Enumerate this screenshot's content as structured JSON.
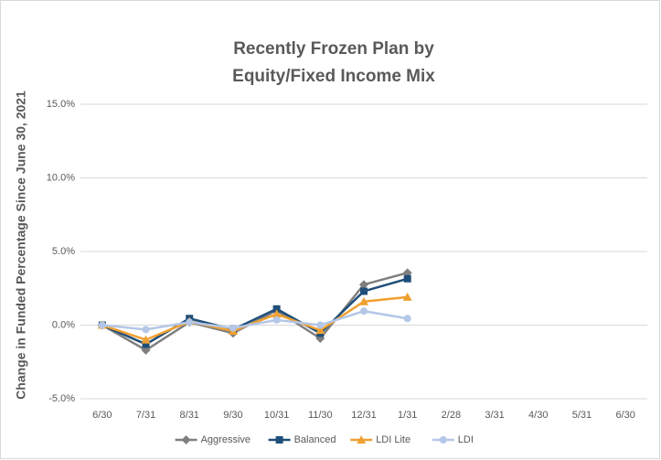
{
  "chart_data": {
    "type": "line",
    "title": [
      "Recently Frozen Plan by",
      "Equity/Fixed Income Mix"
    ],
    "y_label": "Change in Funded Percentage Since June 30, 2021",
    "categories": [
      "6/30",
      "7/31",
      "8/31",
      "9/30",
      "10/31",
      "11/30",
      "12/31",
      "1/31",
      "2/28",
      "3/31",
      "4/30",
      "5/31",
      "6/30"
    ],
    "series": [
      {
        "name": "Aggressive",
        "color": "#7f7f7f",
        "marker": "diamond",
        "values": [
          0,
          -1.7,
          0.2,
          -0.55,
          1.0,
          -0.9,
          2.75,
          3.55,
          null,
          null,
          null,
          null,
          null
        ]
      },
      {
        "name": "Balanced",
        "color": "#1f4e79",
        "marker": "square",
        "values": [
          0,
          -1.3,
          0.45,
          -0.3,
          1.1,
          -0.55,
          2.3,
          3.15,
          null,
          null,
          null,
          null,
          null
        ]
      },
      {
        "name": "LDI Lite",
        "color": "#f0a030",
        "marker": "triangle",
        "values": [
          0,
          -1.0,
          0.25,
          -0.4,
          0.75,
          -0.35,
          1.6,
          1.9,
          null,
          null,
          null,
          null,
          null
        ]
      },
      {
        "name": "LDI",
        "color": "#b4c7e7",
        "marker": "circle",
        "values": [
          0,
          -0.3,
          0.2,
          -0.2,
          0.35,
          0.0,
          0.95,
          0.45,
          null,
          null,
          null,
          null,
          null
        ]
      }
    ],
    "ylim": [
      -5,
      15
    ],
    "yticks": [
      {
        "value": -5,
        "label": "-5.0%"
      },
      {
        "value": 0,
        "label": "0.0%"
      },
      {
        "value": 5,
        "label": "5.0%"
      },
      {
        "value": 10,
        "label": "10.0%"
      },
      {
        "value": 15,
        "label": "15.0%"
      }
    ],
    "grid": true,
    "legend": "bottom"
  }
}
